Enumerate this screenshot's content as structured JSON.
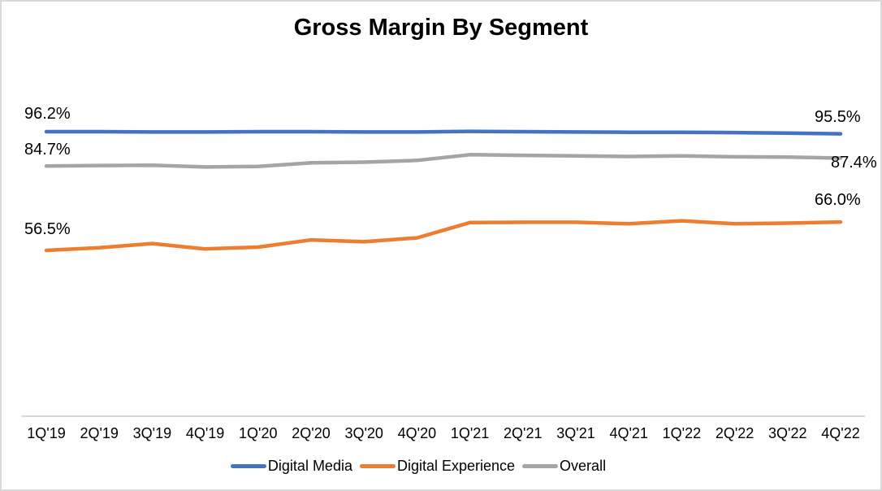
{
  "chart_data": {
    "type": "line",
    "title": "Gross Margin By Segment",
    "categories": [
      "1Q'19",
      "2Q'19",
      "3Q'19",
      "4Q'19",
      "1Q'20",
      "2Q'20",
      "3Q'20",
      "4Q'20",
      "1Q'21",
      "2Q'21",
      "3Q'21",
      "4Q'21",
      "1Q'22",
      "2Q'22",
      "3Q'22",
      "4Q'22"
    ],
    "series": [
      {
        "name": "Digital Media",
        "color": "#4472C4",
        "values": [
          96.2,
          96.2,
          96.1,
          96.1,
          96.2,
          96.2,
          96.1,
          96.1,
          96.3,
          96.2,
          96.1,
          96.0,
          96.0,
          95.9,
          95.7,
          95.5
        ]
      },
      {
        "name": "Digital Experience",
        "color": "#ED7D31",
        "values": [
          56.5,
          57.4,
          58.8,
          57.0,
          57.6,
          60.0,
          59.4,
          60.7,
          65.8,
          65.9,
          65.9,
          65.4,
          66.4,
          65.4,
          65.6,
          66.0
        ]
      },
      {
        "name": "Overall",
        "color": "#A5A5A5",
        "values": [
          84.7,
          84.9,
          85.0,
          84.4,
          84.6,
          85.8,
          86.0,
          86.6,
          88.5,
          88.3,
          88.1,
          87.9,
          88.1,
          87.8,
          87.7,
          87.4
        ]
      }
    ],
    "annotations": {
      "digital_media_first": "96.2%",
      "digital_media_last": "95.5%",
      "overall_first": "84.7%",
      "overall_last": "87.4%",
      "digital_experience_first": "56.5%",
      "digital_experience_last": "66.0%"
    },
    "legend_position": "bottom",
    "grid": false,
    "y_axis_visible": false,
    "x_axis_line_color": "#D9D9D9",
    "ylim_hint": [
      50,
      100
    ]
  }
}
